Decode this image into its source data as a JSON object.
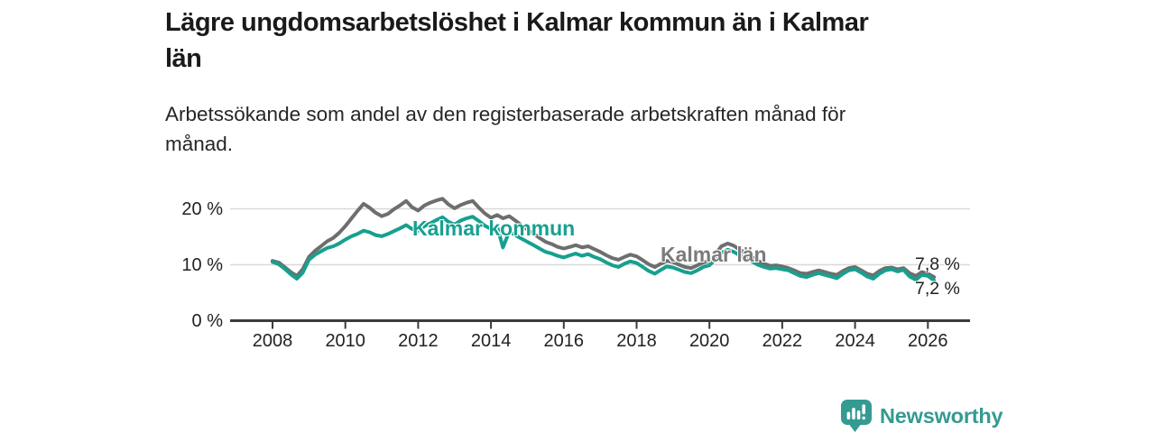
{
  "header": {
    "title_line1": "Lägre ungdomsarbetslöshet i Kalmar kommun än i Kalmar",
    "title_line2": "län",
    "subtitle_line1": "Arbetssökande som andel av den registerbaserade arbetskraften månad för",
    "subtitle_line2": "månad."
  },
  "footer": {
    "brand": "Newsworthy",
    "brand_color": "#359a92"
  },
  "chart_data": {
    "type": "line",
    "title": "Lägre ungdomsarbetslöshet i Kalmar kommun än i Kalmar län",
    "subtitle": "Arbetssökande som andel av den registerbaserade arbetskraften månad för månad.",
    "unit": "%",
    "xlabel": "",
    "ylabel": "",
    "xlim": [
      2006.8,
      2027.2
    ],
    "ylim": [
      0,
      24
    ],
    "grid": "horizontal",
    "legend_position": "inline-annotations",
    "colors": {
      "grid": "#d9d9d9",
      "axis": "#3b3b3b",
      "tick_text": "#222222"
    },
    "y_ticks": [
      {
        "value": 0,
        "label": "0 %"
      },
      {
        "value": 10,
        "label": "10 %"
      },
      {
        "value": 20,
        "label": "20 %"
      }
    ],
    "gridlines": [
      10,
      20
    ],
    "x_ticks": [
      {
        "value": 2008,
        "label": "2008"
      },
      {
        "value": 2010,
        "label": "2010"
      },
      {
        "value": 2012,
        "label": "2012"
      },
      {
        "value": 2014,
        "label": "2014"
      },
      {
        "value": 2016,
        "label": "2016"
      },
      {
        "value": 2018,
        "label": "2018"
      },
      {
        "value": 2020,
        "label": "2020"
      },
      {
        "value": 2022,
        "label": "2022"
      },
      {
        "value": 2024,
        "label": "2024"
      },
      {
        "value": 2026,
        "label": "2026"
      }
    ],
    "series": [
      {
        "id": "kalmar-lan",
        "name": "Kalmar län",
        "color": "#6e6e6e",
        "label_color": "#7b7b7b",
        "end_value": 7.8,
        "end_label": "7,8 %",
        "points": [
          [
            2008.0,
            10.7
          ],
          [
            2008.17,
            10.4
          ],
          [
            2008.33,
            9.6
          ],
          [
            2008.5,
            8.7
          ],
          [
            2008.67,
            8.0
          ],
          [
            2008.83,
            9.2
          ],
          [
            2009.0,
            11.4
          ],
          [
            2009.17,
            12.5
          ],
          [
            2009.33,
            13.3
          ],
          [
            2009.5,
            14.2
          ],
          [
            2009.67,
            14.8
          ],
          [
            2009.83,
            15.7
          ],
          [
            2010.0,
            16.9
          ],
          [
            2010.17,
            18.3
          ],
          [
            2010.33,
            19.6
          ],
          [
            2010.5,
            20.9
          ],
          [
            2010.67,
            20.2
          ],
          [
            2010.83,
            19.3
          ],
          [
            2011.0,
            18.7
          ],
          [
            2011.17,
            19.1
          ],
          [
            2011.33,
            19.9
          ],
          [
            2011.5,
            20.6
          ],
          [
            2011.67,
            21.4
          ],
          [
            2011.83,
            20.3
          ],
          [
            2012.0,
            19.7
          ],
          [
            2012.17,
            20.6
          ],
          [
            2012.33,
            21.1
          ],
          [
            2012.5,
            21.5
          ],
          [
            2012.67,
            21.8
          ],
          [
            2012.83,
            20.8
          ],
          [
            2013.0,
            20.1
          ],
          [
            2013.17,
            20.7
          ],
          [
            2013.33,
            21.1
          ],
          [
            2013.5,
            21.4
          ],
          [
            2013.67,
            20.2
          ],
          [
            2013.83,
            19.2
          ],
          [
            2014.0,
            18.4
          ],
          [
            2014.17,
            18.9
          ],
          [
            2014.33,
            18.3
          ],
          [
            2014.5,
            18.7
          ],
          [
            2014.67,
            17.9
          ],
          [
            2014.83,
            17.1
          ],
          [
            2015.0,
            16.3
          ],
          [
            2015.17,
            15.6
          ],
          [
            2015.33,
            14.8
          ],
          [
            2015.5,
            14.1
          ],
          [
            2015.67,
            13.7
          ],
          [
            2015.83,
            13.2
          ],
          [
            2016.0,
            12.9
          ],
          [
            2016.17,
            13.2
          ],
          [
            2016.33,
            13.5
          ],
          [
            2016.5,
            13.1
          ],
          [
            2016.67,
            13.3
          ],
          [
            2016.83,
            12.8
          ],
          [
            2017.0,
            12.3
          ],
          [
            2017.17,
            11.7
          ],
          [
            2017.33,
            11.2
          ],
          [
            2017.5,
            10.9
          ],
          [
            2017.67,
            11.4
          ],
          [
            2017.83,
            11.8
          ],
          [
            2018.0,
            11.5
          ],
          [
            2018.17,
            10.8
          ],
          [
            2018.33,
            10.1
          ],
          [
            2018.5,
            9.6
          ],
          [
            2018.67,
            10.2
          ],
          [
            2018.83,
            10.7
          ],
          [
            2019.0,
            10.5
          ],
          [
            2019.17,
            10.0
          ],
          [
            2019.33,
            9.6
          ],
          [
            2019.5,
            9.4
          ],
          [
            2019.67,
            9.9
          ],
          [
            2019.83,
            10.4
          ],
          [
            2020.0,
            10.7
          ],
          [
            2020.17,
            12.0
          ],
          [
            2020.33,
            13.3
          ],
          [
            2020.5,
            13.8
          ],
          [
            2020.67,
            13.4
          ],
          [
            2020.83,
            12.7
          ],
          [
            2021.0,
            12.1
          ],
          [
            2021.17,
            11.4
          ],
          [
            2021.33,
            10.7
          ],
          [
            2021.5,
            10.2
          ],
          [
            2021.67,
            9.8
          ],
          [
            2021.83,
            9.9
          ],
          [
            2022.0,
            9.7
          ],
          [
            2022.17,
            9.4
          ],
          [
            2022.33,
            9.0
          ],
          [
            2022.5,
            8.5
          ],
          [
            2022.67,
            8.4
          ],
          [
            2022.83,
            8.7
          ],
          [
            2023.0,
            9.0
          ],
          [
            2023.17,
            8.7
          ],
          [
            2023.33,
            8.4
          ],
          [
            2023.5,
            8.2
          ],
          [
            2023.67,
            8.9
          ],
          [
            2023.83,
            9.4
          ],
          [
            2024.0,
            9.6
          ],
          [
            2024.17,
            9.0
          ],
          [
            2024.33,
            8.4
          ],
          [
            2024.5,
            8.1
          ],
          [
            2024.67,
            8.9
          ],
          [
            2024.83,
            9.4
          ],
          [
            2025.0,
            9.5
          ],
          [
            2025.17,
            9.2
          ],
          [
            2025.33,
            9.4
          ],
          [
            2025.5,
            8.5
          ],
          [
            2025.67,
            8.0
          ],
          [
            2025.83,
            8.7
          ],
          [
            2026.0,
            8.4
          ],
          [
            2026.17,
            7.8
          ]
        ]
      },
      {
        "id": "kalmar-kommun",
        "name": "Kalmar kommun",
        "color": "#17a08f",
        "label_color": "#17a08f",
        "end_value": 7.2,
        "end_label": "7,2 %",
        "points": [
          [
            2008.0,
            10.5
          ],
          [
            2008.17,
            10.1
          ],
          [
            2008.33,
            9.3
          ],
          [
            2008.5,
            8.3
          ],
          [
            2008.67,
            7.5
          ],
          [
            2008.83,
            8.6
          ],
          [
            2009.0,
            10.9
          ],
          [
            2009.17,
            11.8
          ],
          [
            2009.33,
            12.4
          ],
          [
            2009.5,
            13.0
          ],
          [
            2009.67,
            13.3
          ],
          [
            2009.83,
            13.8
          ],
          [
            2010.0,
            14.5
          ],
          [
            2010.17,
            15.1
          ],
          [
            2010.33,
            15.5
          ],
          [
            2010.5,
            16.1
          ],
          [
            2010.67,
            15.8
          ],
          [
            2010.83,
            15.3
          ],
          [
            2011.0,
            15.1
          ],
          [
            2011.17,
            15.5
          ],
          [
            2011.33,
            16.0
          ],
          [
            2011.5,
            16.5
          ],
          [
            2011.67,
            17.1
          ],
          [
            2011.83,
            16.4
          ],
          [
            2012.0,
            16.1
          ],
          [
            2012.17,
            16.9
          ],
          [
            2012.33,
            17.4
          ],
          [
            2012.5,
            18.0
          ],
          [
            2012.67,
            18.5
          ],
          [
            2012.83,
            17.7
          ],
          [
            2013.0,
            17.2
          ],
          [
            2013.17,
            17.9
          ],
          [
            2013.33,
            18.3
          ],
          [
            2013.5,
            18.6
          ],
          [
            2013.67,
            17.8
          ],
          [
            2013.83,
            17.0
          ],
          [
            2014.0,
            16.4
          ],
          [
            2014.17,
            16.8
          ],
          [
            2014.33,
            13.1
          ],
          [
            2014.5,
            15.9
          ],
          [
            2014.67,
            15.3
          ],
          [
            2014.83,
            14.7
          ],
          [
            2015.0,
            14.1
          ],
          [
            2015.17,
            13.5
          ],
          [
            2015.33,
            12.9
          ],
          [
            2015.5,
            12.3
          ],
          [
            2015.67,
            12.0
          ],
          [
            2015.83,
            11.6
          ],
          [
            2016.0,
            11.3
          ],
          [
            2016.17,
            11.7
          ],
          [
            2016.33,
            12.0
          ],
          [
            2016.5,
            11.6
          ],
          [
            2016.67,
            11.9
          ],
          [
            2016.83,
            11.4
          ],
          [
            2017.0,
            11.0
          ],
          [
            2017.17,
            10.4
          ],
          [
            2017.33,
            9.9
          ],
          [
            2017.5,
            9.6
          ],
          [
            2017.67,
            10.2
          ],
          [
            2017.83,
            10.6
          ],
          [
            2018.0,
            10.3
          ],
          [
            2018.17,
            9.6
          ],
          [
            2018.33,
            8.9
          ],
          [
            2018.5,
            8.4
          ],
          [
            2018.67,
            9.1
          ],
          [
            2018.83,
            9.7
          ],
          [
            2019.0,
            9.5
          ],
          [
            2019.17,
            9.1
          ],
          [
            2019.33,
            8.7
          ],
          [
            2019.5,
            8.5
          ],
          [
            2019.67,
            9.0
          ],
          [
            2019.83,
            9.6
          ],
          [
            2020.0,
            9.9
          ],
          [
            2020.17,
            11.1
          ],
          [
            2020.33,
            12.2
          ],
          [
            2020.5,
            12.7
          ],
          [
            2020.67,
            12.3
          ],
          [
            2020.83,
            11.7
          ],
          [
            2021.0,
            11.2
          ],
          [
            2021.17,
            10.6
          ],
          [
            2021.33,
            10.0
          ],
          [
            2021.5,
            9.6
          ],
          [
            2021.67,
            9.3
          ],
          [
            2021.83,
            9.4
          ],
          [
            2022.0,
            9.2
          ],
          [
            2022.17,
            9.0
          ],
          [
            2022.33,
            8.5
          ],
          [
            2022.5,
            8.0
          ],
          [
            2022.67,
            7.8
          ],
          [
            2022.83,
            8.2
          ],
          [
            2023.0,
            8.5
          ],
          [
            2023.17,
            8.2
          ],
          [
            2023.33,
            7.9
          ],
          [
            2023.5,
            7.6
          ],
          [
            2023.67,
            8.4
          ],
          [
            2023.83,
            9.0
          ],
          [
            2024.0,
            9.2
          ],
          [
            2024.17,
            8.6
          ],
          [
            2024.33,
            7.9
          ],
          [
            2024.5,
            7.5
          ],
          [
            2024.67,
            8.4
          ],
          [
            2024.83,
            9.0
          ],
          [
            2025.0,
            9.2
          ],
          [
            2025.17,
            8.8
          ],
          [
            2025.33,
            9.1
          ],
          [
            2025.5,
            7.9
          ],
          [
            2025.67,
            7.3
          ],
          [
            2025.83,
            8.2
          ],
          [
            2026.0,
            8.0
          ],
          [
            2026.17,
            7.2
          ]
        ]
      }
    ],
    "annotations": [
      {
        "text": "Kalmar kommun",
        "series": "kalmar-kommun"
      },
      {
        "text": "Kalmar län",
        "series": "kalmar-lan"
      },
      {
        "text": "7,8 %",
        "series": "kalmar-lan"
      },
      {
        "text": "7,2 %",
        "series": "kalmar-kommun"
      }
    ]
  }
}
